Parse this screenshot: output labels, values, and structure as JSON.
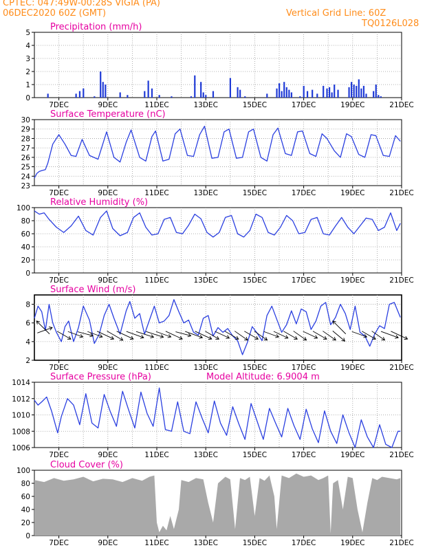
{
  "header": {
    "line1": "CPTEC:  047:49W-00:28S  VIGIA (PA)",
    "line2": "06DEC2020 60Z (GMT)",
    "grid_note": "Vertical Grid Line: 60Z",
    "run_code": "TQ0126L028"
  },
  "x_tick_labels": [
    "7DEC",
    "9DEC",
    "11DEC",
    "13DEC",
    "15DEC",
    "17DEC",
    "19DEC",
    "21DEC"
  ],
  "colors": {
    "header": "#ff8c1a",
    "title": "#e600a0",
    "line": "#2a3fe0",
    "bar": "#1f3ad6",
    "cloud": "#a9a9a9",
    "grid": "#999999"
  },
  "chart_data": [
    {
      "id": "precip",
      "type": "bar",
      "title": "Precipitation (mm/h)",
      "extra": "",
      "ylim": [
        0,
        5
      ],
      "yticks": [
        0,
        1,
        2,
        3,
        4,
        5
      ],
      "xlim": [
        6,
        21
      ],
      "grid": true,
      "x": [
        6.55,
        7.7,
        7.85,
        8.0,
        8.45,
        8.7,
        8.8,
        8.9,
        9.5,
        9.8,
        10.5,
        10.65,
        10.8,
        11.1,
        11.6,
        12.4,
        12.55,
        12.8,
        12.9,
        13.0,
        13.3,
        14.0,
        14.3,
        14.4,
        14.6,
        15.5,
        15.9,
        16.0,
        16.1,
        16.2,
        16.3,
        16.4,
        16.5,
        16.85,
        17.0,
        17.15,
        17.35,
        17.55,
        17.8,
        17.95,
        18.05,
        18.15,
        18.25,
        18.4,
        18.85,
        18.95,
        19.05,
        19.15,
        19.25,
        19.35,
        19.45,
        19.55,
        19.85,
        19.95,
        20.05,
        20.15
      ],
      "values": [
        0.3,
        0.3,
        0.5,
        0.7,
        0.1,
        2.0,
        1.2,
        1.0,
        0.4,
        0.2,
        0.5,
        1.3,
        0.7,
        0.2,
        0.1,
        0.1,
        1.7,
        1.2,
        0.4,
        0.2,
        0.5,
        1.5,
        0.8,
        0.6,
        0.1,
        0.3,
        0.7,
        1.1,
        0.5,
        1.2,
        0.8,
        0.6,
        0.4,
        0.1,
        0.9,
        0.5,
        0.6,
        0.3,
        0.9,
        0.7,
        0.8,
        0.4,
        1.0,
        0.6,
        0.8,
        1.2,
        1.0,
        0.9,
        1.4,
        0.7,
        0.9,
        0.3,
        0.5,
        1.0,
        0.2,
        0.1
      ]
    },
    {
      "id": "temp",
      "type": "line",
      "title": "Surface Temperature (nC)",
      "extra": "",
      "ylim": [
        23,
        30
      ],
      "yticks": [
        23,
        24,
        25,
        26,
        27,
        28,
        29,
        30
      ],
      "xlim": [
        6,
        21
      ],
      "grid": true,
      "x": [
        6.0,
        6.1,
        6.2,
        6.3,
        6.45,
        6.55,
        6.75,
        7.0,
        7.25,
        7.5,
        7.7,
        7.95,
        8.25,
        8.6,
        8.95,
        9.25,
        9.5,
        9.75,
        9.95,
        10.3,
        10.55,
        10.8,
        10.95,
        11.25,
        11.5,
        11.75,
        11.95,
        12.25,
        12.5,
        12.75,
        12.95,
        13.25,
        13.5,
        13.75,
        13.95,
        14.25,
        14.5,
        14.75,
        14.95,
        15.25,
        15.5,
        15.75,
        15.95,
        16.25,
        16.5,
        16.75,
        16.95,
        17.25,
        17.5,
        17.75,
        17.95,
        18.25,
        18.5,
        18.75,
        18.95,
        19.25,
        19.5,
        19.75,
        19.95,
        20.25,
        20.5,
        20.75,
        20.95
      ],
      "values": [
        23.8,
        24.3,
        24.5,
        24.6,
        24.7,
        25.4,
        27.4,
        28.4,
        27.4,
        26.2,
        26.1,
        27.9,
        26.2,
        25.8,
        28.7,
        26.0,
        25.5,
        27.6,
        28.9,
        26.0,
        25.6,
        28.2,
        28.8,
        25.6,
        25.8,
        28.5,
        29.0,
        26.2,
        26.1,
        28.4,
        29.3,
        25.9,
        26.0,
        28.7,
        29.0,
        25.9,
        26.0,
        28.7,
        29.0,
        26.0,
        25.6,
        28.4,
        29.1,
        26.4,
        26.2,
        28.7,
        28.8,
        26.4,
        26.1,
        28.5,
        28.0,
        26.7,
        26.0,
        28.5,
        28.2,
        26.3,
        26.0,
        28.4,
        28.3,
        26.2,
        26.1,
        28.3,
        27.7
      ]
    },
    {
      "id": "rh",
      "type": "line",
      "title": "Relative Humidity (%)",
      "extra": "",
      "ylim": [
        0,
        100
      ],
      "yticks": [
        0,
        20,
        40,
        60,
        80,
        100
      ],
      "xlim": [
        6,
        21
      ],
      "grid": true,
      "x": [
        6.0,
        6.2,
        6.4,
        6.6,
        6.9,
        7.2,
        7.5,
        7.8,
        8.1,
        8.4,
        8.7,
        8.95,
        9.2,
        9.5,
        9.8,
        10.05,
        10.3,
        10.55,
        10.8,
        11.05,
        11.3,
        11.55,
        11.8,
        12.05,
        12.3,
        12.55,
        12.8,
        13.05,
        13.3,
        13.55,
        13.8,
        14.05,
        14.3,
        14.55,
        14.8,
        15.05,
        15.3,
        15.55,
        15.8,
        16.05,
        16.3,
        16.55,
        16.8,
        17.05,
        17.3,
        17.55,
        17.8,
        18.05,
        18.3,
        18.55,
        18.8,
        19.05,
        19.3,
        19.55,
        19.8,
        20.05,
        20.3,
        20.55,
        20.8,
        20.95
      ],
      "values": [
        95,
        90,
        92,
        82,
        70,
        62,
        72,
        87,
        65,
        58,
        85,
        95,
        68,
        57,
        62,
        85,
        92,
        70,
        58,
        60,
        82,
        85,
        62,
        60,
        73,
        90,
        83,
        62,
        55,
        62,
        85,
        88,
        60,
        55,
        65,
        90,
        85,
        62,
        58,
        70,
        88,
        80,
        60,
        62,
        82,
        85,
        60,
        58,
        72,
        85,
        70,
        60,
        72,
        84,
        82,
        65,
        70,
        92,
        65,
        76
      ]
    },
    {
      "id": "wind",
      "type": "line",
      "title": "Surface Wind (m/s)",
      "extra": "",
      "ylim": [
        2,
        9
      ],
      "yticks": [
        2,
        4,
        6,
        8
      ],
      "xlim": [
        6,
        21
      ],
      "grid": true,
      "x": [
        6.0,
        6.15,
        6.3,
        6.45,
        6.6,
        6.75,
        6.9,
        7.1,
        7.25,
        7.4,
        7.6,
        7.8,
        8.0,
        8.25,
        8.45,
        8.65,
        8.85,
        9.05,
        9.25,
        9.5,
        9.75,
        9.9,
        10.1,
        10.3,
        10.5,
        10.7,
        10.9,
        11.1,
        11.3,
        11.5,
        11.7,
        11.9,
        12.1,
        12.3,
        12.5,
        12.7,
        12.9,
        13.1,
        13.3,
        13.5,
        13.7,
        13.9,
        14.1,
        14.3,
        14.5,
        14.7,
        14.9,
        15.1,
        15.3,
        15.5,
        15.7,
        15.9,
        16.1,
        16.3,
        16.5,
        16.7,
        16.9,
        17.1,
        17.3,
        17.5,
        17.7,
        17.9,
        18.1,
        18.3,
        18.5,
        18.7,
        18.9,
        19.1,
        19.3,
        19.5,
        19.7,
        19.9,
        20.1,
        20.3,
        20.5,
        20.7,
        20.95
      ],
      "values": [
        6.5,
        7.8,
        7.2,
        5.2,
        8.0,
        6.0,
        5.0,
        4.0,
        5.6,
        6.2,
        4.0,
        5.5,
        7.8,
        6.3,
        3.8,
        4.8,
        6.8,
        8.0,
        6.5,
        4.8,
        7.3,
        8.3,
        6.5,
        7.0,
        4.8,
        6.3,
        7.8,
        6.0,
        6.2,
        6.8,
        8.5,
        7.2,
        6.0,
        6.3,
        5.0,
        4.7,
        6.5,
        6.8,
        4.6,
        5.5,
        5.0,
        5.4,
        4.6,
        4.1,
        2.6,
        3.9,
        5.6,
        4.9,
        4.1,
        6.8,
        7.8,
        6.4,
        5.0,
        5.8,
        7.3,
        5.9,
        7.5,
        7.2,
        5.3,
        6.2,
        7.8,
        8.2,
        5.8,
        6.6,
        8.0,
        7.0,
        5.3,
        7.8,
        5.0,
        4.6,
        3.5,
        4.8,
        5.7,
        5.4,
        8.0,
        8.2,
        6.6
      ]
    },
    {
      "id": "pres",
      "type": "line",
      "title": "Surface Pressure (hPa)",
      "extra": "Model Altitude: 6.9004 m",
      "ylim": [
        1006,
        1014
      ],
      "yticks": [
        1006,
        1008,
        1010,
        1012,
        1014
      ],
      "xlim": [
        6,
        21
      ],
      "grid": true,
      "x": [
        6.0,
        6.15,
        6.3,
        6.5,
        6.7,
        6.95,
        7.1,
        7.35,
        7.6,
        7.85,
        8.1,
        8.35,
        8.6,
        8.85,
        9.1,
        9.35,
        9.6,
        9.85,
        10.1,
        10.35,
        10.6,
        10.85,
        11.1,
        11.35,
        11.6,
        11.85,
        12.1,
        12.35,
        12.6,
        12.85,
        13.1,
        13.35,
        13.6,
        13.85,
        14.1,
        14.35,
        14.6,
        14.85,
        15.1,
        15.35,
        15.6,
        15.85,
        16.1,
        16.35,
        16.6,
        16.85,
        17.1,
        17.35,
        17.6,
        17.85,
        18.1,
        18.35,
        18.6,
        18.85,
        19.1,
        19.35,
        19.6,
        19.85,
        20.1,
        20.35,
        20.6,
        20.85,
        20.95
      ],
      "values": [
        1011.8,
        1011.2,
        1011.6,
        1012.2,
        1010.5,
        1007.8,
        1009.8,
        1012.0,
        1011.2,
        1008.8,
        1012.6,
        1009.0,
        1008.4,
        1012.5,
        1010.4,
        1008.6,
        1012.9,
        1010.6,
        1008.4,
        1012.8,
        1010.2,
        1008.6,
        1013.3,
        1008.2,
        1008.0,
        1011.6,
        1008.0,
        1007.7,
        1011.6,
        1009.6,
        1007.8,
        1011.7,
        1009.0,
        1007.5,
        1011.0,
        1008.9,
        1007.0,
        1011.4,
        1009.2,
        1007.0,
        1010.8,
        1009.0,
        1007.3,
        1010.8,
        1008.7,
        1007.0,
        1010.7,
        1008.3,
        1006.6,
        1010.5,
        1008.0,
        1006.5,
        1010.0,
        1007.8,
        1005.8,
        1009.4,
        1007.3,
        1006.0,
        1008.8,
        1006.4,
        1005.8,
        1008.0,
        1008.0
      ]
    },
    {
      "id": "cloud",
      "type": "area",
      "title": "Cloud Cover (%)",
      "extra": "",
      "ylim": [
        0,
        100
      ],
      "yticks": [
        0,
        20,
        40,
        60,
        80,
        100
      ],
      "xlim": [
        6,
        21
      ],
      "grid": false,
      "x": [
        6.0,
        6.4,
        6.8,
        7.2,
        7.6,
        8.0,
        8.4,
        8.8,
        9.2,
        9.6,
        10.0,
        10.4,
        10.7,
        10.9,
        11.0,
        11.1,
        11.25,
        11.4,
        11.55,
        11.7,
        11.9,
        12.0,
        12.3,
        12.6,
        12.9,
        13.1,
        13.3,
        13.5,
        13.8,
        14.0,
        14.2,
        14.4,
        14.6,
        14.8,
        15.0,
        15.2,
        15.4,
        15.6,
        15.8,
        15.9,
        16.1,
        16.4,
        16.7,
        17.0,
        17.3,
        17.6,
        17.8,
        18.0,
        18.1,
        18.2,
        18.4,
        18.6,
        18.8,
        19.0,
        19.2,
        19.4,
        19.6,
        19.8,
        20.0,
        20.2,
        20.5,
        20.8,
        20.95
      ],
      "values": [
        85,
        82,
        88,
        84,
        86,
        90,
        83,
        87,
        86,
        82,
        88,
        84,
        90,
        92,
        20,
        5,
        15,
        8,
        30,
        10,
        40,
        85,
        82,
        88,
        86,
        50,
        20,
        80,
        90,
        86,
        10,
        88,
        85,
        90,
        30,
        88,
        84,
        92,
        60,
        10,
        92,
        88,
        95,
        90,
        92,
        85,
        88,
        92,
        3,
        80,
        85,
        40,
        90,
        88,
        40,
        5,
        50,
        88,
        85,
        90,
        88,
        86,
        88
      ]
    }
  ],
  "wind_barbs": {
    "x": [
      6.2,
      6.55,
      7.0,
      7.45,
      7.85,
      8.25,
      8.65,
      9.05,
      9.45,
      9.85,
      10.25,
      10.65,
      11.05,
      11.45,
      11.85,
      12.25,
      12.65,
      13.05,
      13.45,
      13.85,
      14.25,
      14.65,
      15.05,
      15.45,
      15.85,
      16.25,
      16.65,
      17.05,
      17.45,
      17.85,
      18.25,
      18.65,
      19.05,
      19.45,
      19.85,
      20.25,
      20.65
    ],
    "dir_deg": [
      160,
      45,
      210,
      200,
      195,
      200,
      205,
      210,
      205,
      200,
      198,
      198,
      200,
      205,
      195,
      200,
      205,
      210,
      205,
      210,
      215,
      210,
      215,
      200,
      205,
      210,
      215,
      205,
      210,
      215,
      220,
      45,
      200,
      210,
      215,
      200,
      205
    ],
    "speed_ms": [
      5,
      6,
      5,
      5,
      5,
      5,
      6,
      6,
      6,
      6,
      6,
      6,
      5,
      6,
      5,
      6,
      6,
      5,
      5,
      5,
      5,
      5,
      5,
      5,
      5,
      5,
      5,
      5,
      5,
      5,
      5,
      6,
      5,
      5,
      5,
      6,
      6
    ]
  }
}
